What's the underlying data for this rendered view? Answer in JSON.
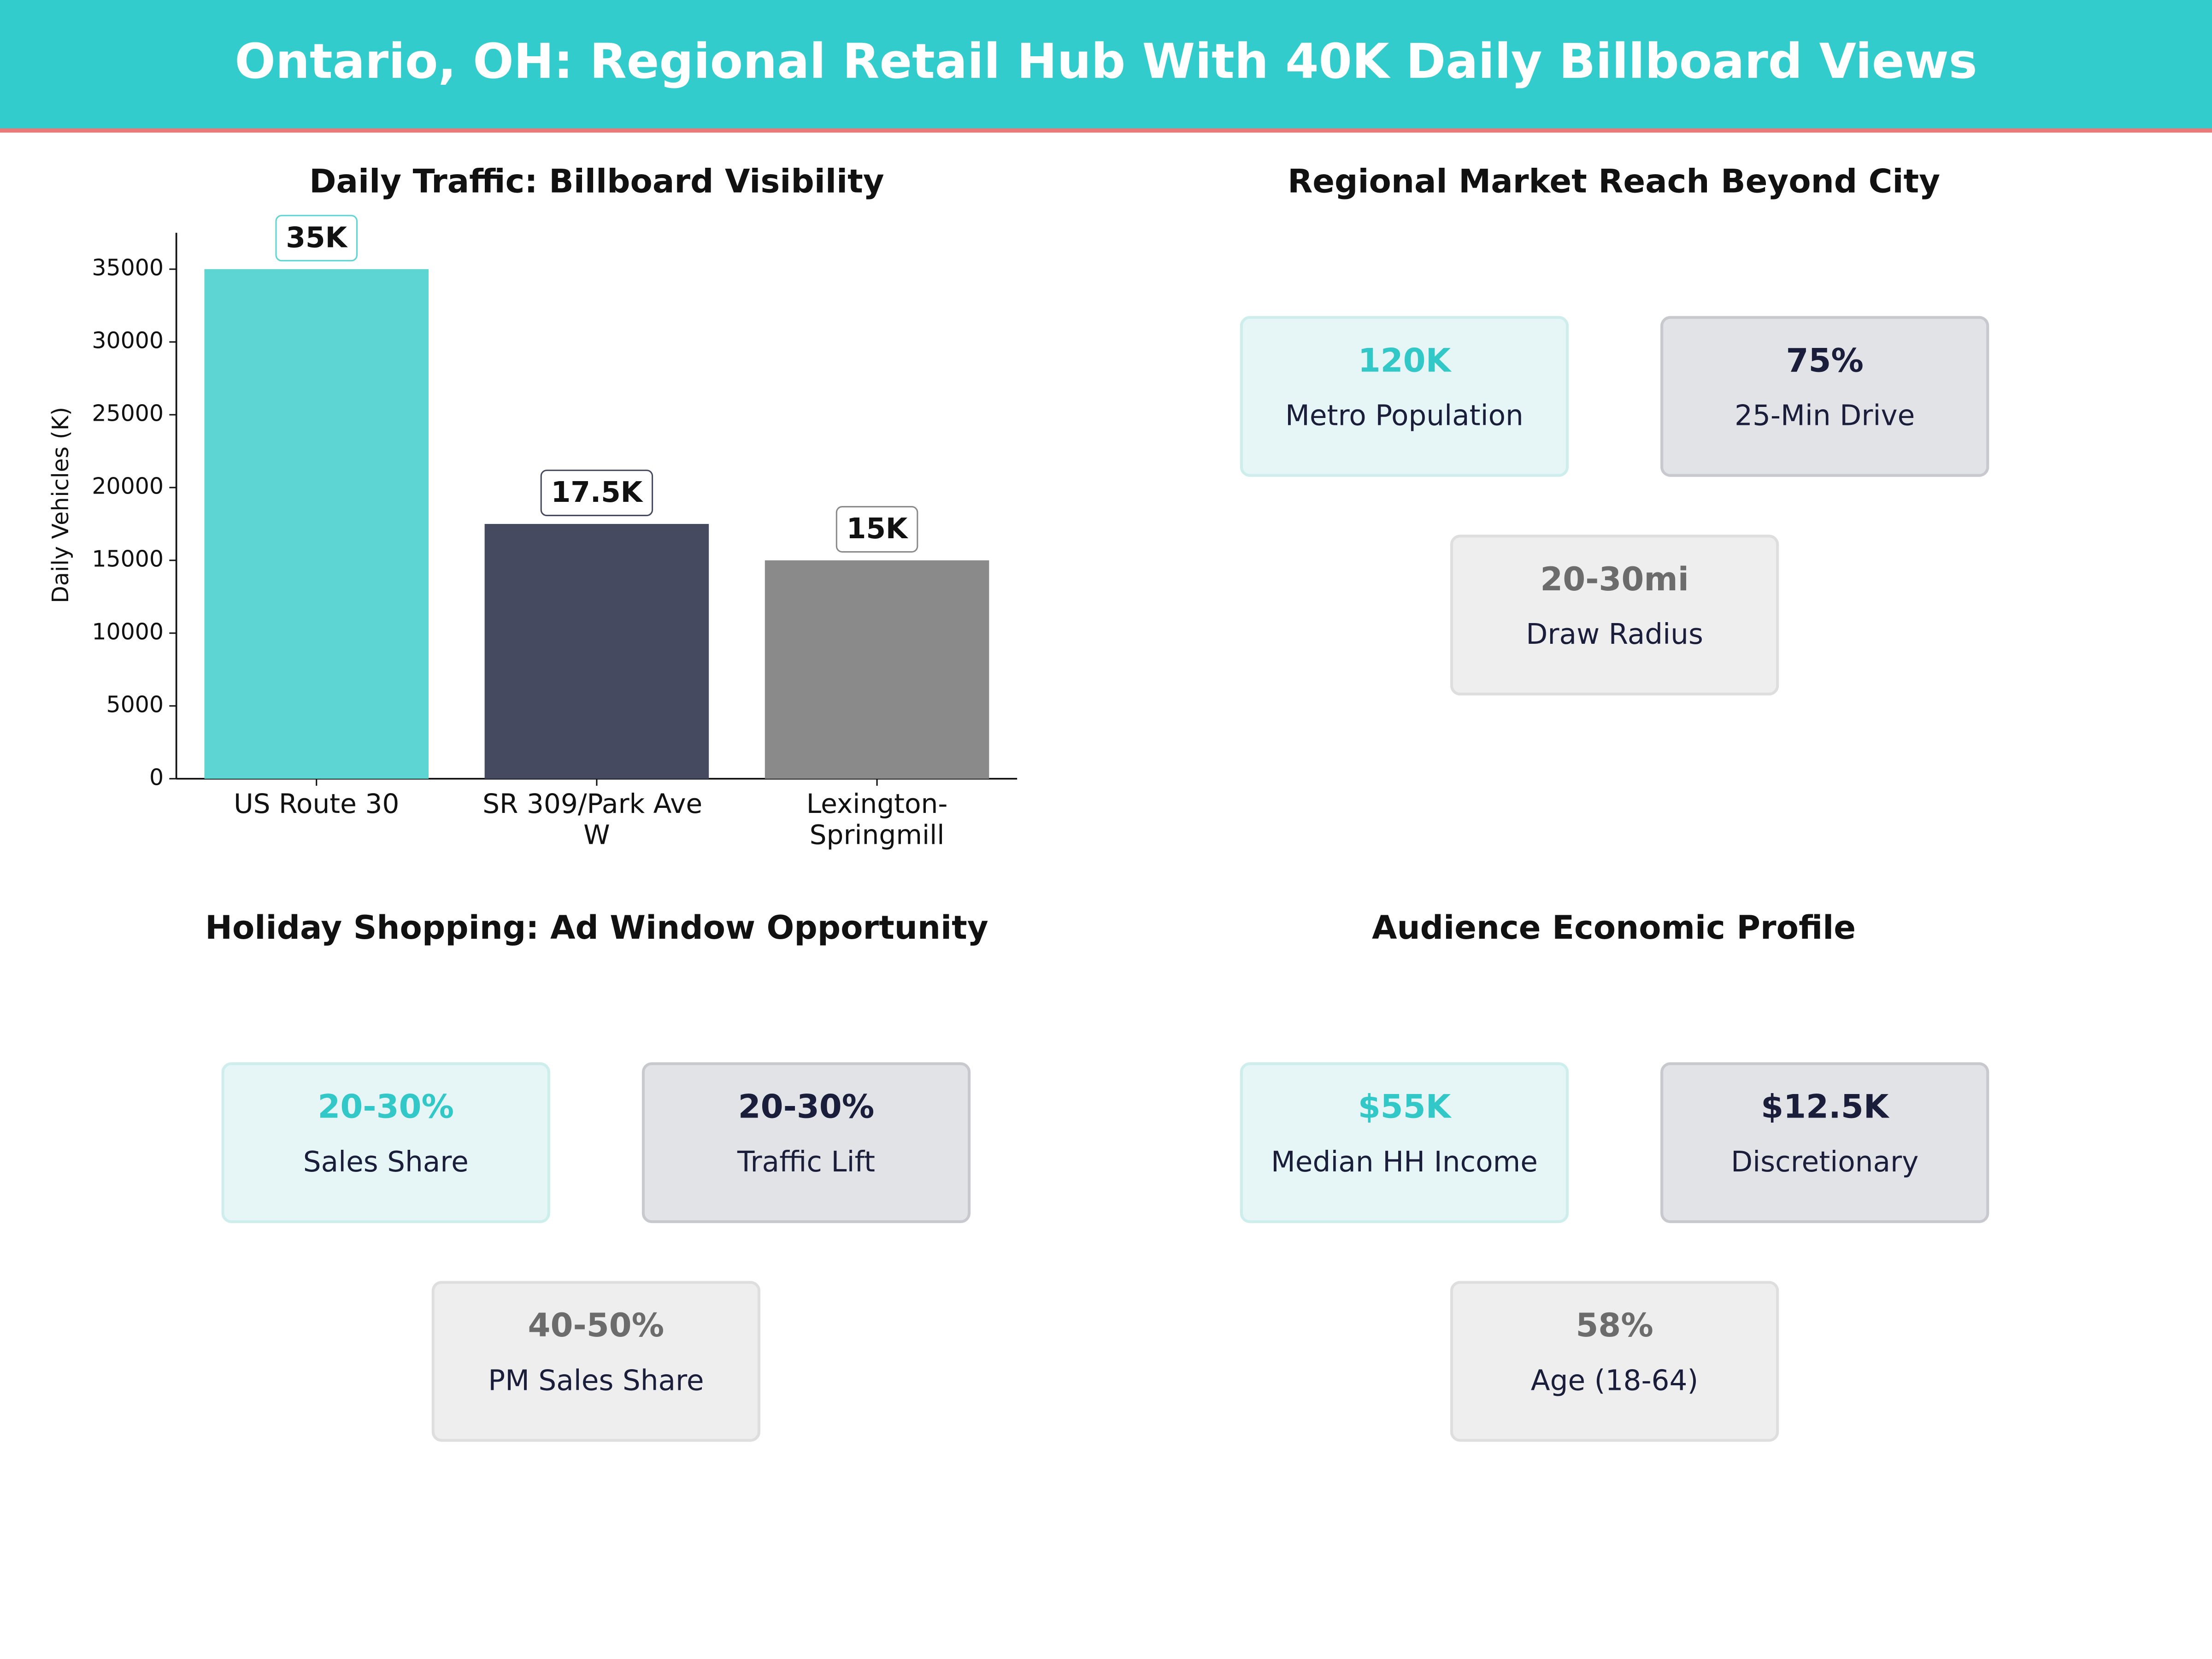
{
  "header": {
    "title": "Ontario, OH: Regional Retail Hub With 40K Daily Billboard Views"
  },
  "chart_data": {
    "type": "bar",
    "title": "Daily Traffic: Billboard Visibility",
    "y_label": "Daily Vehicles (K)",
    "categories": [
      "US Route 30",
      "SR 309/Park Ave W",
      "Lexington-Springmill"
    ],
    "values": [
      35000,
      17500,
      15000
    ],
    "value_labels": [
      "35K",
      "17.5K",
      "15K"
    ],
    "colors": [
      "#5dd6d3",
      "#464a60",
      "#8a8a8a"
    ],
    "ylim": [
      0,
      37500
    ],
    "yticks": [
      0,
      5000,
      10000,
      15000,
      20000,
      25000,
      30000,
      35000
    ],
    "grid": false
  },
  "panels": [
    {
      "title": "Regional Market Reach Beyond City",
      "cards": [
        {
          "value": "120K",
          "label": "Metro Population",
          "color": "#33c8c8",
          "fill": "#e6f6f6",
          "border": "#cdeeed"
        },
        {
          "value": "75%",
          "label": "25-Min Drive",
          "color": "#1a1e3a",
          "fill": "#e2e3e7",
          "border": "#c8c9ce"
        },
        {
          "value": "20-30mi",
          "label": "Draw Radius",
          "color": "#6c6c6c",
          "fill": "#eeeeee",
          "border": "#dedede"
        }
      ]
    },
    {
      "title": "Holiday Shopping: Ad Window Opportunity",
      "cards": [
        {
          "value": "20-30%",
          "label": "Sales Share",
          "color": "#33c8c8",
          "fill": "#e6f6f6",
          "border": "#cdeeed"
        },
        {
          "value": "20-30%",
          "label": "Traffic Lift",
          "color": "#1a1e3a",
          "fill": "#e2e3e7",
          "border": "#c8c9ce"
        },
        {
          "value": "40-50%",
          "label": "PM Sales Share",
          "color": "#6c6c6c",
          "fill": "#eeeeee",
          "border": "#dedede"
        }
      ]
    },
    {
      "title": "Audience Economic Profile",
      "cards": [
        {
          "value": "$55K",
          "label": "Median HH Income",
          "color": "#33c8c8",
          "fill": "#e6f6f6",
          "border": "#cdeeed"
        },
        {
          "value": "$12.5K",
          "label": "Discretionary",
          "color": "#1a1e3a",
          "fill": "#e2e3e7",
          "border": "#c8c9ce"
        },
        {
          "value": "58%",
          "label": "Age (18-64)",
          "color": "#6c6c6c",
          "fill": "#eeeeee",
          "border": "#dedede"
        }
      ]
    }
  ]
}
